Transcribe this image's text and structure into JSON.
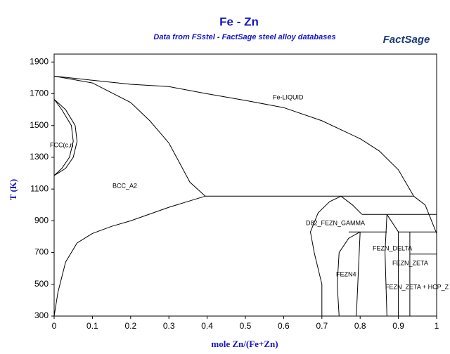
{
  "chart_data": {
    "type": "phase_diagram",
    "title": "Fe - Zn",
    "subtitle": "Data from FSstel - FactSage steel alloy databases",
    "logo": "FactSage",
    "x_label": "mole Zn/(Fe+Zn)",
    "y_label": "T (K)",
    "xlim": [
      0,
      1
    ],
    "ylim": [
      300,
      1950
    ],
    "xticks": [
      0,
      0.1,
      0.2,
      0.3,
      0.4,
      0.5,
      0.6,
      0.7,
      0.8,
      0.9,
      1
    ],
    "yticks": [
      300,
      500,
      700,
      900,
      1100,
      1300,
      1500,
      1700,
      1900
    ],
    "color": "#000000",
    "annotations": [
      "Fe-LIQUID",
      "FCC(c,n",
      "BCC_A2",
      "D82_FEZN_GAMMA",
      "FEZN_DELTA",
      "FEZN_ZETA",
      "FEZN4",
      "FEZN_ZETA + HCP_Z"
    ],
    "series": [
      {
        "x": [
          0,
          0.1,
          0.2,
          0.3,
          0.4,
          0.5,
          0.6,
          0.7,
          0.8,
          0.85,
          0.9,
          0.94
        ],
        "y": [
          1811,
          1785,
          1760,
          1745,
          1700,
          1658,
          1613,
          1530,
          1417,
          1340,
          1221,
          1055
        ]
      },
      {
        "x": [
          0,
          0.1,
          0.2,
          0.25,
          0.3,
          0.355,
          0.395
        ],
        "y": [
          1811,
          1768,
          1645,
          1530,
          1390,
          1143,
          1055
        ]
      },
      {
        "x": [
          0.395,
          0.94
        ],
        "y": [
          1055,
          1055
        ]
      },
      {
        "x": [
          0.395,
          0.3,
          0.2,
          0.15,
          0.1,
          0.06,
          0.03,
          0.01,
          0
        ],
        "y": [
          1055,
          985,
          900,
          865,
          820,
          760,
          640,
          450,
          300
        ]
      },
      {
        "x": [
          0,
          0.03,
          0.055,
          0.06,
          0.05,
          0.03,
          0
        ],
        "y": [
          1665,
          1600,
          1500,
          1400,
          1300,
          1230,
          1185
        ]
      },
      {
        "x": [
          0,
          0.02,
          0.045,
          0.05,
          0.04,
          0.02,
          0
        ],
        "y": [
          1665,
          1600,
          1500,
          1400,
          1300,
          1230,
          1185
        ]
      },
      {
        "x": [
          0.7,
          0.7,
          0.68,
          0.67,
          0.69,
          0.72,
          0.75
        ],
        "y": [
          300,
          500,
          700,
          830,
          950,
          1020,
          1055
        ]
      },
      {
        "x": [
          0.75,
          0.78,
          0.805
        ],
        "y": [
          1055,
          1000,
          940
        ]
      },
      {
        "x": [
          0.805,
          1
        ],
        "y": [
          940,
          940
        ]
      },
      {
        "x": [
          0.94,
          0.97,
          1
        ],
        "y": [
          1055,
          1000,
          820
        ]
      },
      {
        "x": [
          0.745,
          0.74,
          0.745,
          0.77,
          0.8
        ],
        "y": [
          300,
          500,
          700,
          790,
          830
        ]
      },
      {
        "x": [
          0.77,
          0.87
        ],
        "y": [
          830,
          830
        ]
      },
      {
        "x": [
          0.79,
          0.8
        ],
        "y": [
          300,
          830
        ]
      },
      {
        "x": [
          0.87,
          0.865,
          0.87
        ],
        "y": [
          300,
          700,
          940
        ]
      },
      {
        "x": [
          0.87,
          0.9
        ],
        "y": [
          940,
          830
        ]
      },
      {
        "x": [
          0.9,
          0.9
        ],
        "y": [
          300,
          830
        ]
      },
      {
        "x": [
          0.9,
          1
        ],
        "y": [
          830,
          830
        ]
      },
      {
        "x": [
          0.93,
          0.93
        ],
        "y": [
          300,
          830
        ]
      },
      {
        "x": [
          0.93,
          1
        ],
        "y": [
          690,
          690
        ]
      }
    ]
  }
}
